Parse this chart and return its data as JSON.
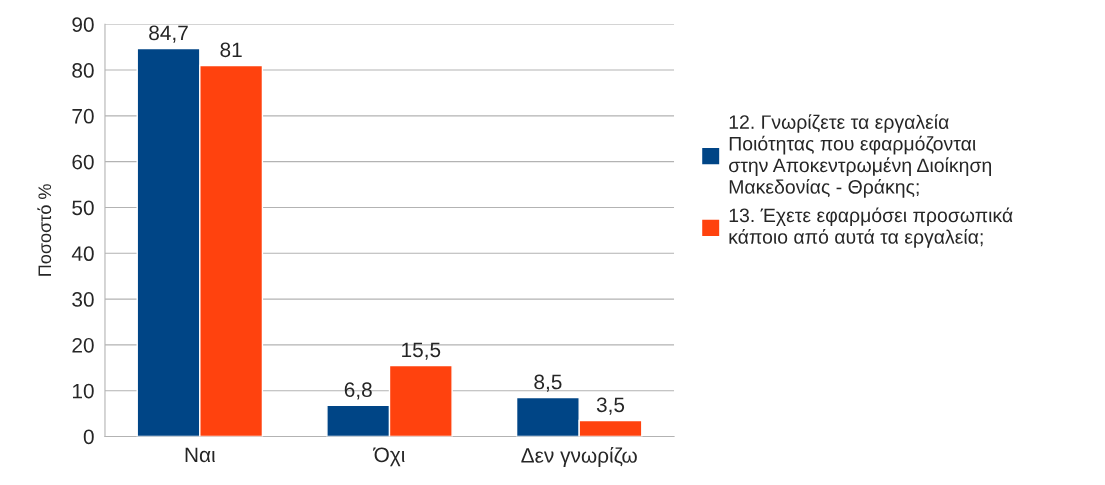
{
  "chart_data": {
    "type": "bar",
    "ylabel": "Ποσοστό %",
    "categories": [
      "Ναι",
      "Όχι",
      "Δεν γνωρίζω"
    ],
    "series": [
      {
        "name": "12. Γνωρίζετε τα εργαλεία Ποιότητας που εφαρμόζονται στην Αποκεντρωμένη Διοίκηση Μακεδονίας - Θράκης;",
        "color": "#004586",
        "values": [
          84.7,
          6.8,
          8.5
        ],
        "value_labels": [
          "84,7",
          "6,8",
          "8,5"
        ]
      },
      {
        "name": "13. Έχετε εφαρμόσει προσωπικά κάποιο από αυτά τα εργαλεία;",
        "color": "#ff420e",
        "values": [
          81,
          15.5,
          3.5
        ],
        "value_labels": [
          "81",
          "15,5",
          "3,5"
        ]
      }
    ],
    "ylim": [
      0,
      90
    ],
    "yticks": [
      0,
      10,
      20,
      30,
      40,
      50,
      60,
      70,
      80,
      90
    ],
    "grid": "y",
    "legend": "right"
  }
}
